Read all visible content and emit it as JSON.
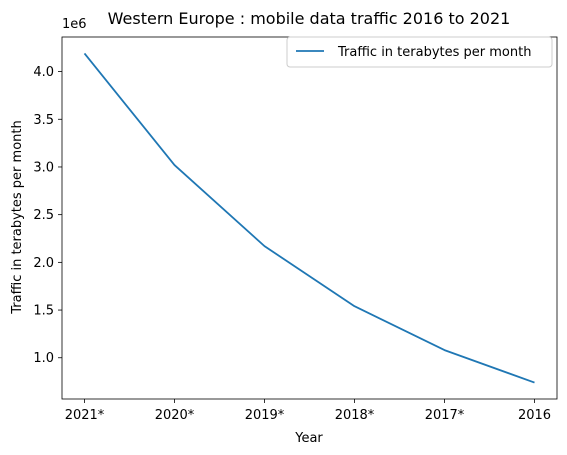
{
  "chart_data": {
    "type": "line",
    "title": "Western Europe : mobile data traffic 2016 to 2021",
    "xlabel": "Year",
    "ylabel": "Traffic in terabytes per month",
    "y_offset_label": "1e6",
    "categories": [
      "2021*",
      "2020*",
      "2019*",
      "2018*",
      "2017*",
      "2016"
    ],
    "series": [
      {
        "name": "Traffic in terabytes per month",
        "color": "#1f77b4",
        "values": [
          4190000,
          3020000,
          2170000,
          1540000,
          1080000,
          740000
        ]
      }
    ],
    "yticks": [
      1.0,
      1.5,
      2.0,
      2.5,
      3.0,
      3.5,
      4.0
    ],
    "ytick_labels": [
      "1.0",
      "1.5",
      "2.0",
      "2.5",
      "3.0",
      "3.5",
      "4.0"
    ],
    "ylim": [
      567500,
      4362500
    ],
    "grid": false,
    "legend_position": "top-right"
  }
}
